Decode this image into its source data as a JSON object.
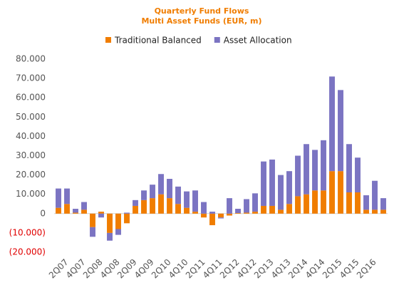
{
  "chart_data": {
    "type": "bar",
    "stacked": true,
    "title": "Quarterly Fund Flows",
    "subtitle": "Multi Asset Funds (EUR, m)",
    "categories": [
      null,
      "2Q07",
      null,
      "4Q07",
      null,
      "2Q08",
      null,
      "4Q08",
      null,
      "2Q09",
      null,
      "4Q09",
      null,
      "2Q10",
      null,
      "4Q10",
      null,
      "2Q11",
      null,
      "4Q11",
      null,
      "2Q12",
      null,
      "4Q12",
      null,
      "2Q13",
      null,
      "4Q13",
      null,
      "2Q14",
      null,
      "4Q14",
      null,
      "2Q15",
      null,
      "4Q15",
      null,
      "2Q16",
      null
    ],
    "series": [
      {
        "name": "Traditional Balanced",
        "color": "#f07d00",
        "values": [
          3000,
          5000,
          500,
          2000,
          -7000,
          1000,
          -10000,
          -8000,
          -5000,
          4000,
          7000,
          8000,
          10000,
          8000,
          5000,
          3000,
          1000,
          -2000,
          -6000,
          -2000,
          -1000,
          300,
          500,
          1000,
          4000,
          4000,
          2000,
          5000,
          9000,
          10000,
          12000,
          12000,
          22000,
          22000,
          11000,
          11000,
          2000,
          2000,
          2000
        ]
      },
      {
        "name": "Asset Allocation",
        "color": "#7b74c2",
        "values": [
          10000,
          8000,
          2000,
          4000,
          -5000,
          -2000,
          -4000,
          -3000,
          500,
          3000,
          5000,
          7000,
          10500,
          10000,
          9000,
          8500,
          11000,
          6000,
          1000,
          -500,
          8000,
          2200,
          7000,
          9500,
          23000,
          24000,
          18000,
          17000,
          21000,
          26000,
          21000,
          26000,
          49000,
          42000,
          25000,
          18000,
          7500,
          15000,
          6000
        ]
      }
    ],
    "ylim": [
      -20000,
      80000
    ],
    "yticks": [
      {
        "value": -20000,
        "label": "(20.000)"
      },
      {
        "value": -10000,
        "label": "(10.000)"
      },
      {
        "value": 0,
        "label": "0"
      },
      {
        "value": 10000,
        "label": "10.000"
      },
      {
        "value": 20000,
        "label": "20.000"
      },
      {
        "value": 30000,
        "label": "30.000"
      },
      {
        "value": 40000,
        "label": "40.000"
      },
      {
        "value": 50000,
        "label": "50.000"
      },
      {
        "value": 60000,
        "label": "60.000"
      },
      {
        "value": 70000,
        "label": "70.000"
      },
      {
        "value": 80000,
        "label": "80.000"
      }
    ],
    "grid": false,
    "legend": "top"
  }
}
